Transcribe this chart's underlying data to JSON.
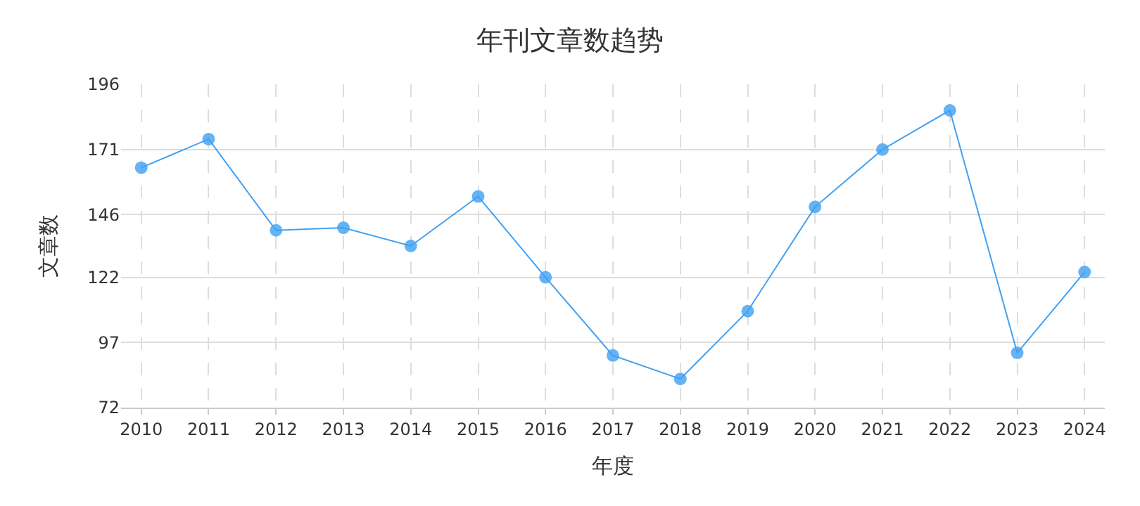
{
  "chart_data": {
    "type": "line",
    "title": "年刊文章数趋势",
    "xlabel": "年度",
    "ylabel": "文章数",
    "categories": [
      "2010",
      "2011",
      "2012",
      "2013",
      "2014",
      "2015",
      "2016",
      "2017",
      "2018",
      "2019",
      "2020",
      "2021",
      "2022",
      "2023",
      "2024"
    ],
    "series": [
      {
        "color": "#3fa0f2",
        "values": [
          164,
          175,
          140,
          141,
          134,
          153,
          122,
          92,
          83,
          109,
          149,
          171,
          186,
          93,
          124
        ]
      }
    ],
    "ylim": [
      72,
      196
    ],
    "yticks": [
      72,
      97,
      122,
      146,
      171,
      196
    ],
    "grid": true,
    "marker": "circle",
    "line_style": "solid",
    "legend": false
  }
}
